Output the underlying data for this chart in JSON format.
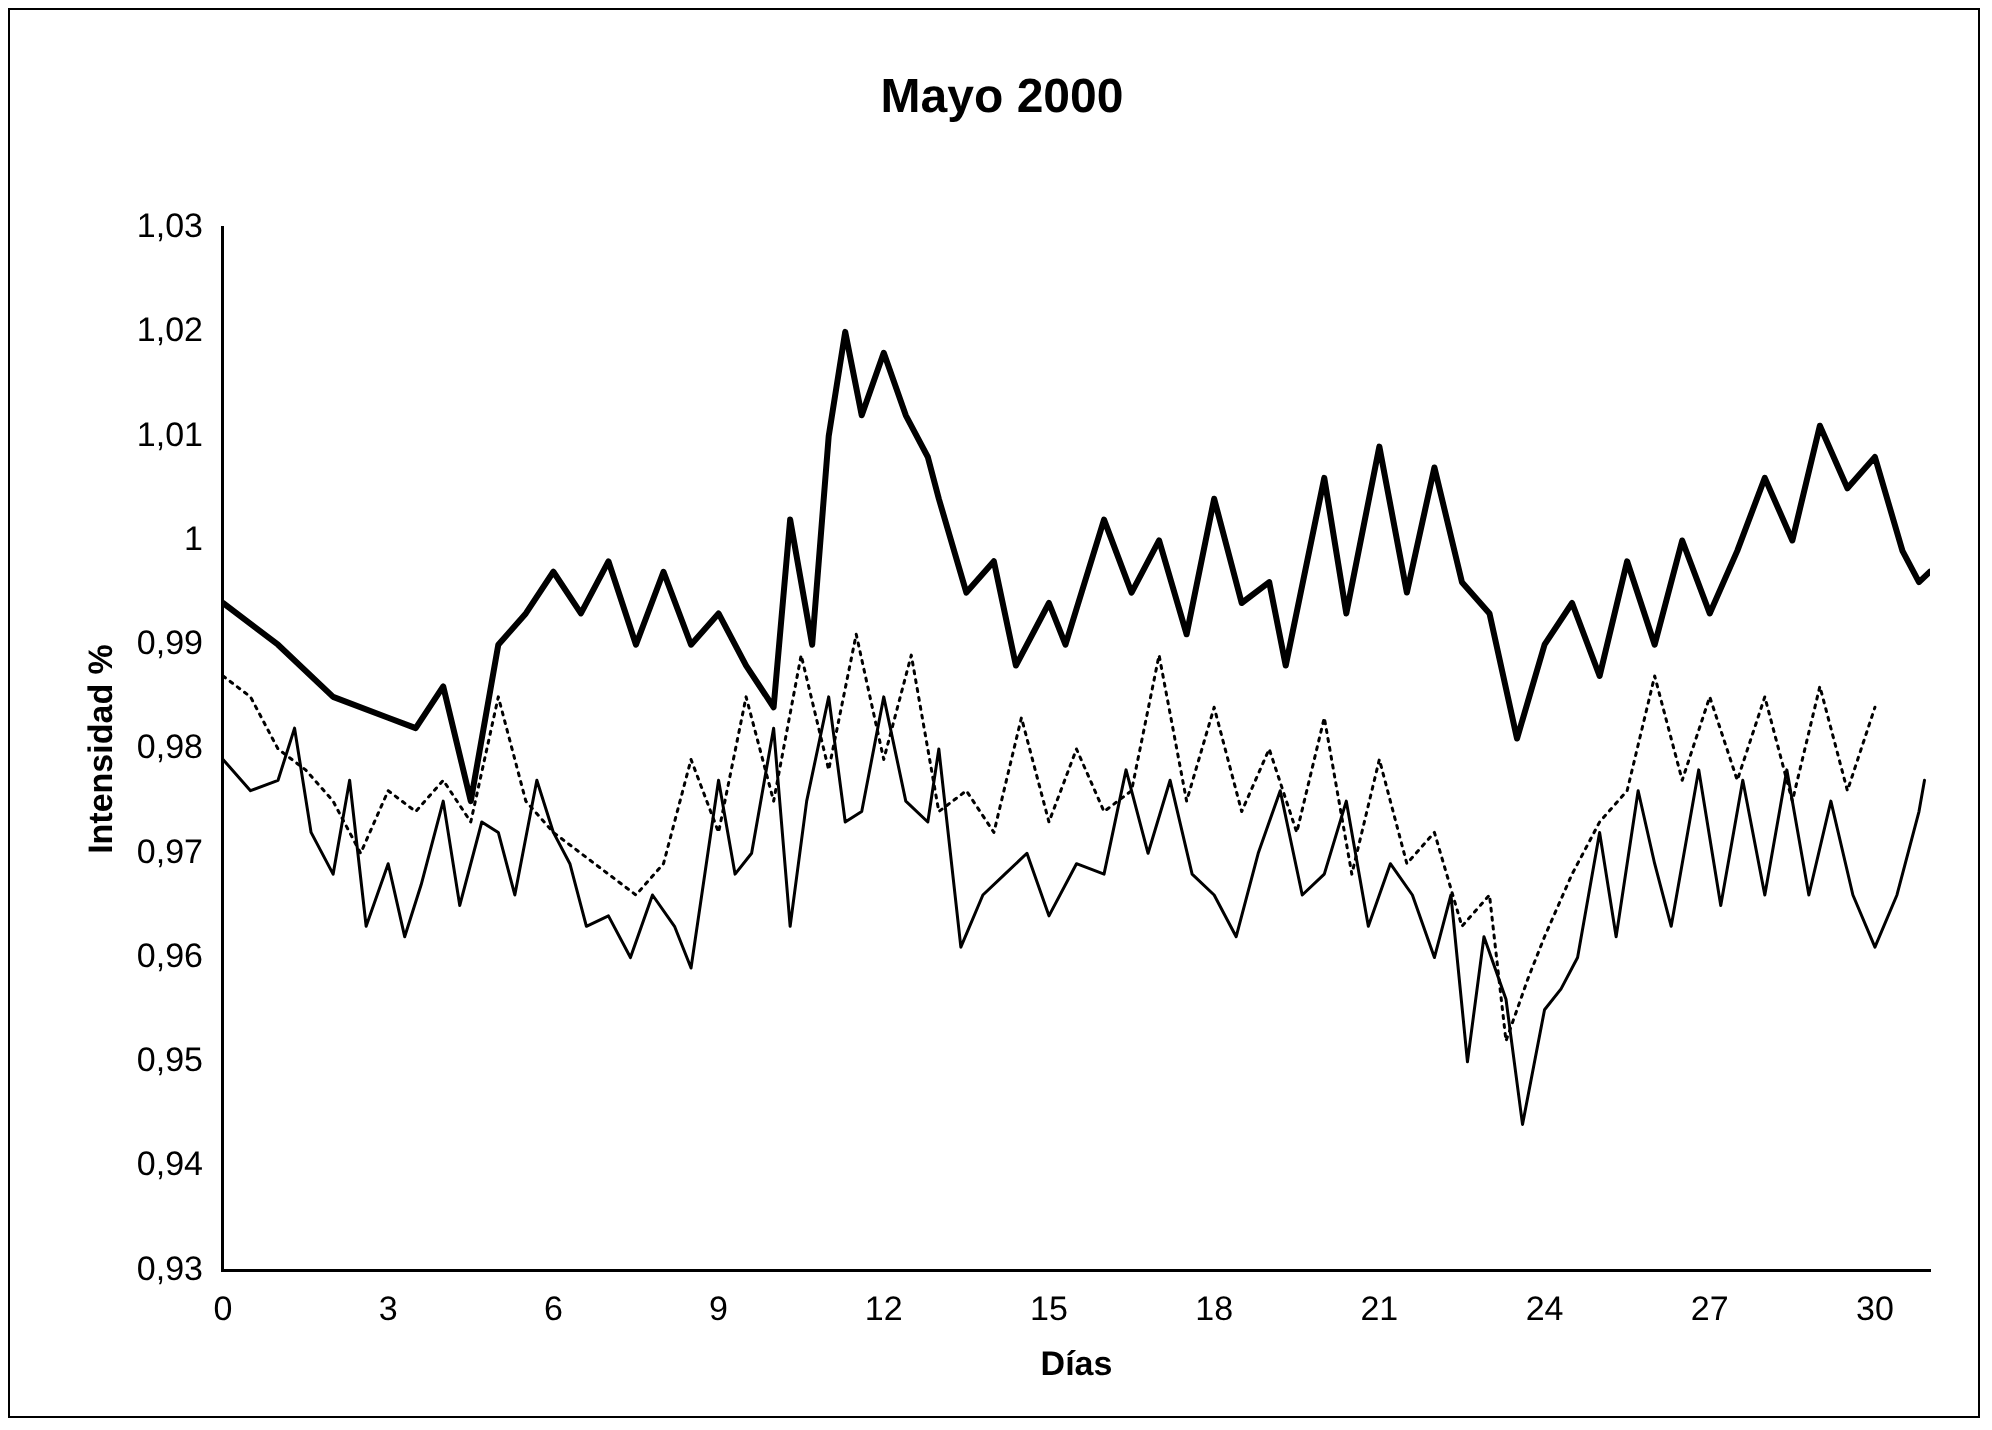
{
  "chart_data": {
    "type": "line",
    "title": "Mayo 2000",
    "xlabel": "Días",
    "ylabel": "Intensidad %",
    "xlim": [
      0,
      31
    ],
    "xticks": [
      0,
      3,
      6,
      9,
      12,
      15,
      18,
      21,
      24,
      27,
      30
    ],
    "ylim": [
      0.93,
      1.03
    ],
    "yticks": [
      {
        "value": 0.93,
        "label": "0,93"
      },
      {
        "value": 0.94,
        "label": "0,94"
      },
      {
        "value": 0.95,
        "label": "0,95"
      },
      {
        "value": 0.96,
        "label": "0,96"
      },
      {
        "value": 0.97,
        "label": "0,97"
      },
      {
        "value": 0.98,
        "label": "0,98"
      },
      {
        "value": 0.99,
        "label": "0,99"
      },
      {
        "value": 1,
        "label": "1"
      },
      {
        "value": 1.01,
        "label": "1,01"
      },
      {
        "value": 1.02,
        "label": "1,02"
      },
      {
        "value": 1.03,
        "label": "1,03"
      }
    ],
    "grid": false,
    "legend": false,
    "marker": "none",
    "series": [
      {
        "color": "#000000",
        "line_style": "solid",
        "x": [
          0,
          1,
          2,
          3,
          3.5,
          4,
          4.5,
          5,
          5.5,
          6,
          6.5,
          7,
          7.5,
          8,
          8.5,
          9,
          9.5,
          10,
          10.3,
          10.7,
          11,
          11.3,
          11.6,
          12,
          12.4,
          12.8,
          13,
          13.5,
          14,
          14.4,
          15,
          15.3,
          16,
          16.5,
          17,
          17.5,
          18,
          18.5,
          19,
          19.3,
          20,
          20.4,
          21,
          21.5,
          22,
          22.5,
          23,
          23.5,
          24,
          24.5,
          25,
          25.5,
          26,
          26.5,
          27,
          27.5,
          28,
          28.5,
          29,
          29.5,
          30,
          30.5,
          30.8,
          31
        ],
        "values": [
          0.994,
          0.99,
          0.985,
          0.983,
          0.982,
          0.986,
          0.975,
          0.99,
          0.993,
          0.997,
          0.993,
          0.998,
          0.99,
          0.997,
          0.99,
          0.993,
          0.988,
          0.984,
          1.002,
          0.99,
          1.01,
          1.02,
          1.012,
          1.018,
          1.012,
          1.008,
          1.004,
          0.995,
          0.998,
          0.988,
          0.994,
          0.99,
          1.002,
          0.995,
          1,
          0.991,
          1.004,
          0.994,
          0.996,
          0.988,
          1.006,
          0.993,
          1.009,
          0.995,
          1.007,
          0.996,
          0.993,
          0.981,
          0.99,
          0.994,
          0.987,
          0.998,
          0.99,
          1,
          0.993,
          0.999,
          1.006,
          1,
          1.011,
          1.005,
          1.008,
          0.999,
          0.996,
          0.997
        ]
      },
      {
        "color": "#000000",
        "line_style": "dotted",
        "x": [
          0,
          0.5,
          1,
          1.5,
          2,
          2.5,
          3,
          3.5,
          4,
          4.5,
          5,
          5.5,
          6,
          6.5,
          7,
          7.5,
          8,
          8.5,
          9,
          9.5,
          10,
          10.5,
          11,
          11.5,
          12,
          12.5,
          13,
          13.5,
          14,
          14.5,
          15,
          15.5,
          16,
          16.5,
          17,
          17.5,
          18,
          18.5,
          19,
          19.5,
          20,
          20.5,
          21,
          21.5,
          22,
          22.5,
          23,
          23.3,
          23.7,
          24,
          24.5,
          25,
          25.5,
          26,
          26.5,
          27,
          27.5,
          28,
          28.5,
          29,
          29.5,
          30
        ],
        "values": [
          0.987,
          0.985,
          0.98,
          0.978,
          0.975,
          0.97,
          0.976,
          0.974,
          0.977,
          0.973,
          0.985,
          0.975,
          0.972,
          0.97,
          0.968,
          0.966,
          0.969,
          0.979,
          0.972,
          0.985,
          0.975,
          0.989,
          0.978,
          0.991,
          0.979,
          0.989,
          0.974,
          0.976,
          0.972,
          0.983,
          0.973,
          0.98,
          0.974,
          0.976,
          0.989,
          0.975,
          0.984,
          0.974,
          0.98,
          0.972,
          0.983,
          0.968,
          0.979,
          0.969,
          0.972,
          0.963,
          0.966,
          0.952,
          0.958,
          0.962,
          0.968,
          0.973,
          0.976,
          0.987,
          0.977,
          0.985,
          0.977,
          0.985,
          0.975,
          0.986,
          0.976,
          0.984
        ]
      },
      {
        "color": "#000000",
        "line_style": "solid",
        "x": [
          0,
          0.5,
          1,
          1.3,
          1.6,
          2,
          2.3,
          2.6,
          3,
          3.3,
          3.6,
          4,
          4.3,
          4.7,
          5,
          5.3,
          5.7,
          6,
          6.3,
          6.6,
          7,
          7.4,
          7.8,
          8.2,
          8.5,
          9,
          9.3,
          9.6,
          10,
          10.3,
          10.6,
          11,
          11.3,
          11.6,
          12,
          12.4,
          12.8,
          13,
          13.4,
          13.8,
          14.2,
          14.6,
          15,
          15.5,
          16,
          16.4,
          16.8,
          17.2,
          17.6,
          18,
          18.4,
          18.8,
          19.2,
          19.6,
          20,
          20.4,
          20.8,
          21.2,
          21.6,
          22,
          22.3,
          22.6,
          22.9,
          23.3,
          23.6,
          24,
          24.3,
          24.6,
          25,
          25.3,
          25.7,
          26,
          26.3,
          26.8,
          27.2,
          27.6,
          28,
          28.4,
          28.8,
          29.2,
          29.6,
          30,
          30.4,
          30.8,
          30.9
        ],
        "values": [
          0.979,
          0.976,
          0.977,
          0.982,
          0.972,
          0.968,
          0.977,
          0.963,
          0.969,
          0.962,
          0.967,
          0.975,
          0.965,
          0.973,
          0.972,
          0.966,
          0.977,
          0.972,
          0.969,
          0.963,
          0.964,
          0.96,
          0.966,
          0.963,
          0.959,
          0.977,
          0.968,
          0.97,
          0.982,
          0.963,
          0.975,
          0.985,
          0.973,
          0.974,
          0.985,
          0.975,
          0.973,
          0.98,
          0.961,
          0.966,
          0.968,
          0.97,
          0.964,
          0.969,
          0.968,
          0.978,
          0.97,
          0.977,
          0.968,
          0.966,
          0.962,
          0.97,
          0.976,
          0.966,
          0.968,
          0.975,
          0.963,
          0.969,
          0.966,
          0.96,
          0.966,
          0.95,
          0.962,
          0.956,
          0.944,
          0.955,
          0.957,
          0.96,
          0.972,
          0.962,
          0.976,
          0.969,
          0.963,
          0.978,
          0.965,
          0.977,
          0.966,
          0.978,
          0.966,
          0.975,
          0.966,
          0.961,
          0.966,
          0.974,
          0.977
        ]
      }
    ]
  }
}
